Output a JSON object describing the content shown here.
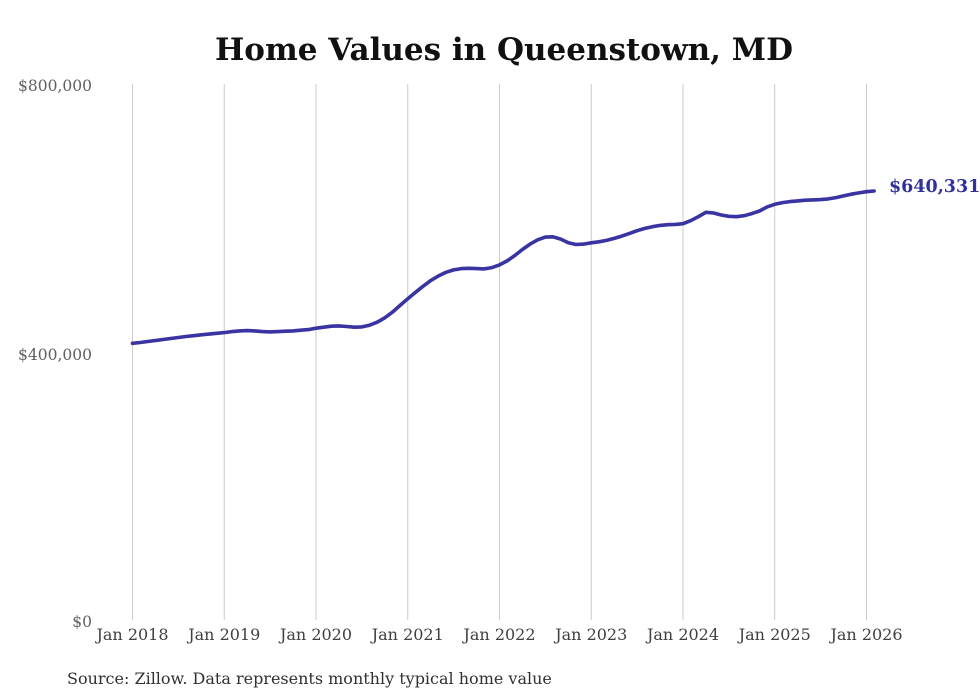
{
  "page": {
    "background": "#ffffff"
  },
  "chart_data": {
    "type": "line",
    "title": "Home Values in Queenstown, MD",
    "source_note": "Source: Zillow. Data represents monthly typical home value",
    "end_label": "$640,331",
    "final_value": 640331,
    "x_interval": "monthly",
    "x_start_month": "Jan 2018",
    "x_end_month": "Feb 2026",
    "x_tick_labels": [
      "Jan 2018",
      "Jan 2019",
      "Jan 2020",
      "Jan 2021",
      "Jan 2022",
      "Jan 2023",
      "Jan 2024",
      "Jan 2025",
      "Jan 2026"
    ],
    "y_tick_labels": [
      "$800,000",
      "$400,000",
      "$0"
    ],
    "y_ticks": [
      800000,
      400000,
      0
    ],
    "ylim": [
      0,
      800000
    ],
    "grid": "vertical-yearly-only",
    "legend": "none",
    "colors": {
      "line": "#3a34a3",
      "end_label": "#31309f",
      "gridline": "#cbcbcb",
      "title_text": "#111111",
      "x_axis_text": "#404040",
      "y_axis_text": "#606060",
      "source_text": "#303030",
      "background": "#ffffff"
    },
    "series": [
      {
        "name": "Typical home value",
        "color": "#3a34a3",
        "values": [
          413000,
          414200,
          415600,
          417100,
          418700,
          420200,
          421700,
          423100,
          424400,
          425600,
          426700,
          427900,
          429000,
          430500,
          431500,
          432000,
          431500,
          430500,
          430000,
          430500,
          431000,
          431500,
          432500,
          433500,
          435500,
          437000,
          438500,
          439000,
          438000,
          437000,
          437500,
          440000,
          444500,
          451000,
          459500,
          469500,
          479500,
          489000,
          498000,
          506500,
          513500,
          519000,
          522500,
          524500,
          525000,
          524500,
          524000,
          526000,
          530000,
          536000,
          544000,
          553000,
          561000,
          567500,
          571500,
          572000,
          568500,
          563000,
          560500,
          561000,
          563000,
          564500,
          566500,
          569500,
          573000,
          577000,
          581000,
          584500,
          587000,
          589000,
          590000,
          590500,
          591500,
          596000,
          602000,
          608500,
          607500,
          604500,
          602500,
          602000,
          603500,
          606500,
          610500,
          616500,
          620500,
          623000,
          624500,
          625500,
          626500,
          627000,
          627500,
          628500,
          630500,
          633000,
          635500,
          637500,
          639300,
          640331
        ]
      }
    ]
  }
}
